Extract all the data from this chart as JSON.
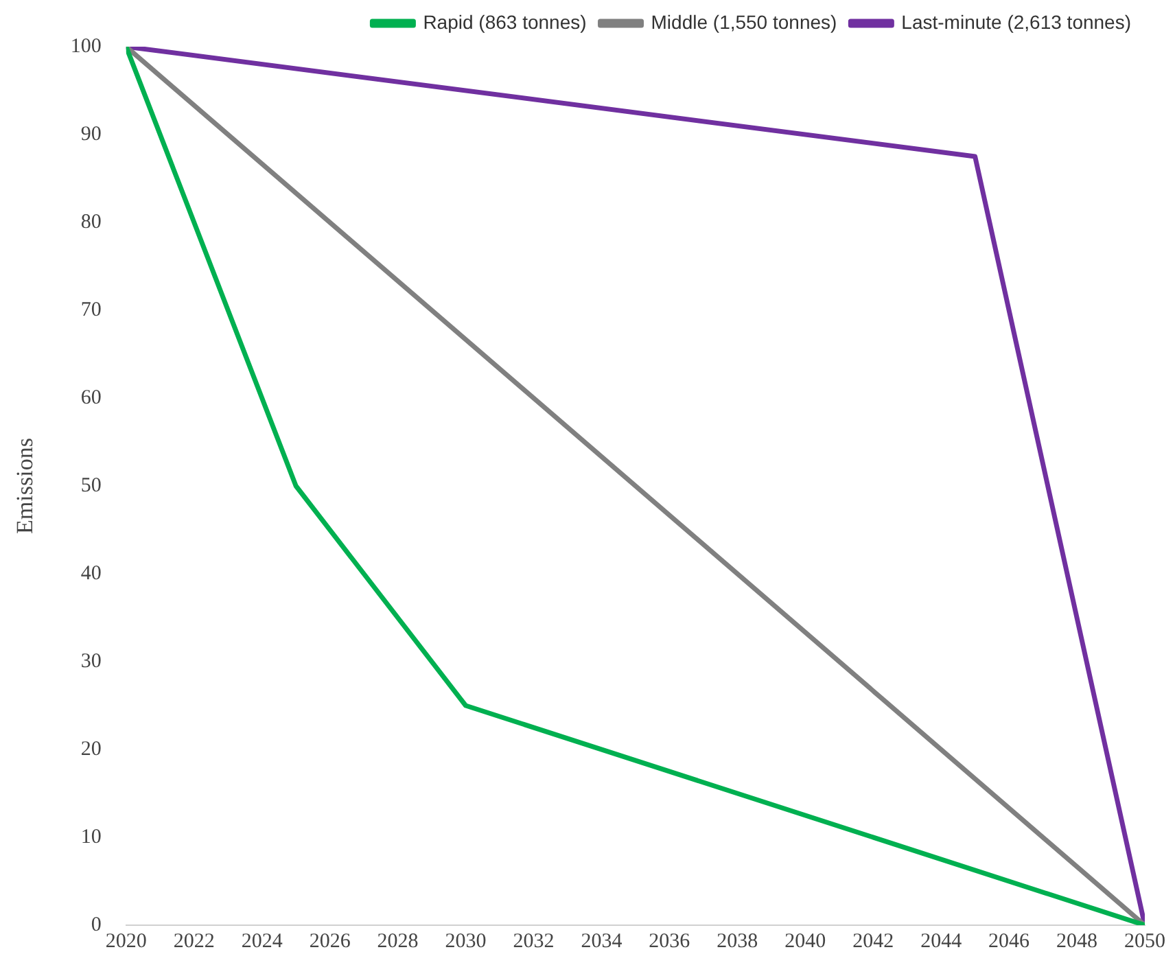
{
  "chart_data": {
    "type": "line",
    "ylabel": "Emissions",
    "xlim": [
      2020,
      2050
    ],
    "xticks": [
      2020,
      2022,
      2024,
      2026,
      2028,
      2030,
      2032,
      2034,
      2036,
      2038,
      2040,
      2042,
      2044,
      2046,
      2048,
      2050
    ],
    "ylim": [
      0,
      100
    ],
    "yticks": [
      0,
      10,
      20,
      30,
      40,
      50,
      60,
      70,
      80,
      90,
      100
    ],
    "grid": false,
    "legend": "top",
    "marker": "none",
    "line_style": "solid",
    "series": [
      {
        "name": "Rapid (863 tonnes)",
        "color": "#00b050",
        "x": [
          2020,
          2025,
          2030,
          2050
        ],
        "values": [
          100,
          50,
          25,
          0
        ]
      },
      {
        "name": "Middle (1,550 tonnes)",
        "color": "#808080",
        "x": [
          2020,
          2050
        ],
        "values": [
          100,
          0
        ]
      },
      {
        "name": "Last-minute (2,613 tonnes)",
        "color": "#7030a0",
        "x": [
          2020,
          2045,
          2050
        ],
        "values": [
          100,
          87.5,
          0
        ]
      }
    ]
  }
}
